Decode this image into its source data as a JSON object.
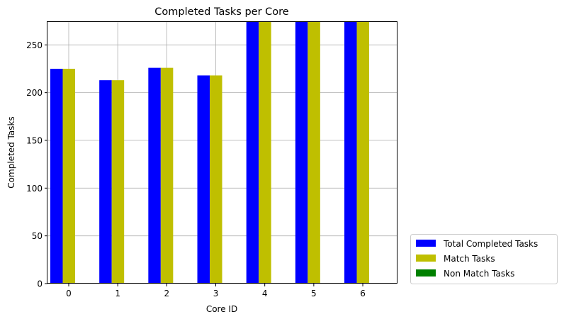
{
  "chart_data": {
    "type": "bar",
    "title": "Completed Tasks per Core",
    "xlabel": "Core ID",
    "ylabel": "Completed Tasks",
    "categories": [
      "0",
      "1",
      "2",
      "3",
      "4",
      "5",
      "6"
    ],
    "series": [
      {
        "name": "Total Completed Tasks",
        "color": "#0000ff",
        "values": [
          225,
          213,
          226,
          218,
          274,
          274,
          274
        ]
      },
      {
        "name": "Match Tasks",
        "color": "#bfbf00",
        "values": [
          225,
          213,
          226,
          218,
          274,
          274,
          274
        ]
      },
      {
        "name": "Non Match Tasks",
        "color": "#008000",
        "values": [
          0,
          0,
          0,
          0,
          0,
          0,
          0
        ]
      }
    ],
    "ylim": [
      0,
      274
    ],
    "yticks": [
      0,
      50,
      100,
      150,
      200,
      250
    ],
    "grid": true,
    "legend_position": "outside-bottom-right"
  }
}
